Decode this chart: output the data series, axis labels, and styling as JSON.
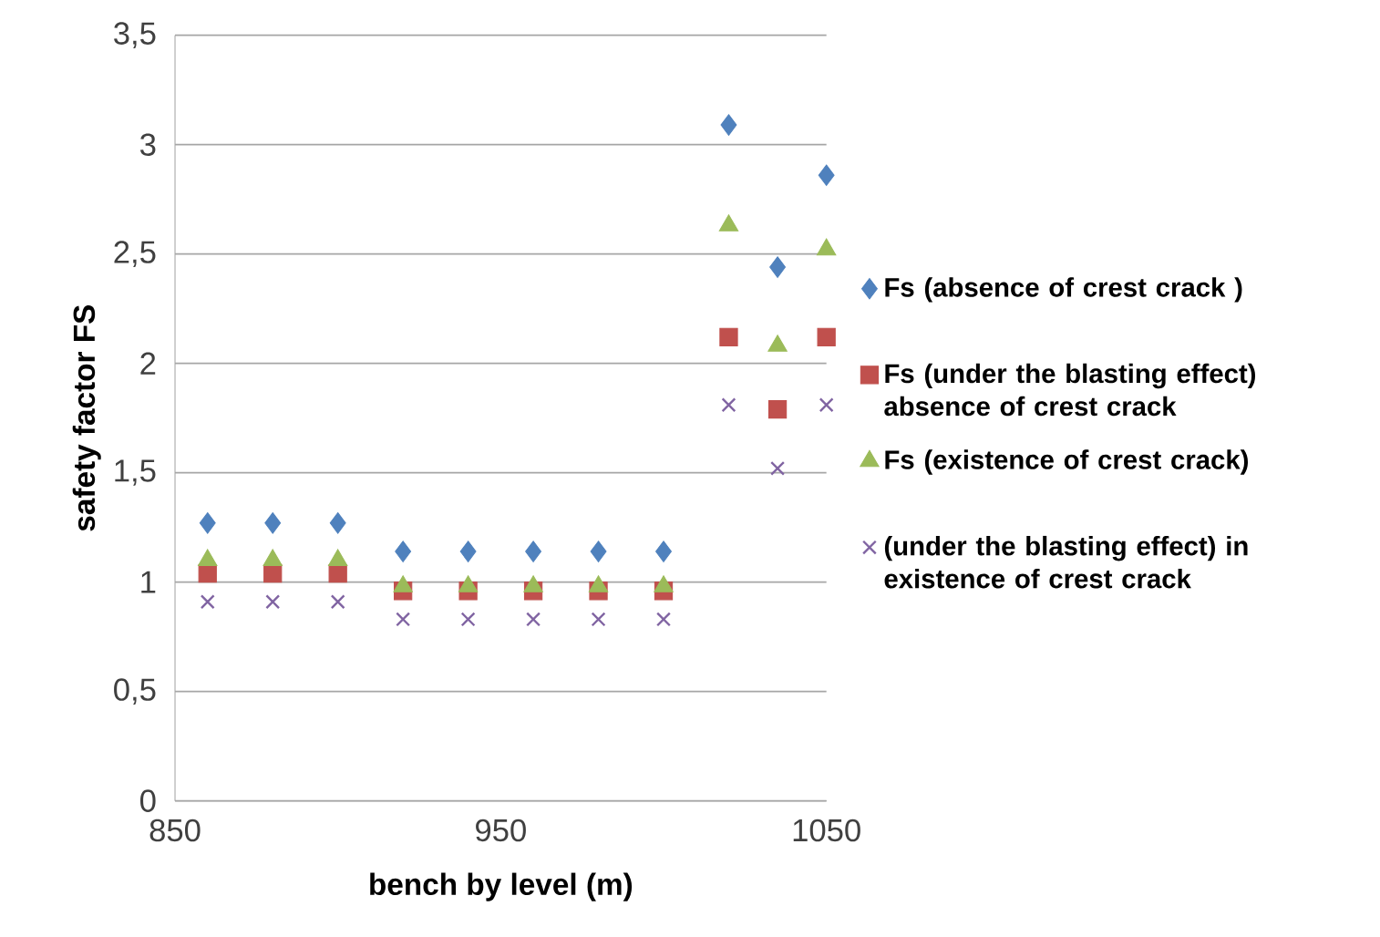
{
  "chart_data": {
    "type": "scatter",
    "xlabel": "bench by level (m)",
    "ylabel": "safety factor  FS",
    "x": [
      860,
      880,
      900,
      920,
      940,
      960,
      980,
      1000,
      1020,
      1035,
      1050
    ],
    "series": [
      {
        "name": "Fs (absence of crest crack )",
        "color": "#4f81bd",
        "marker": "diamond",
        "values": [
          1.27,
          1.27,
          1.27,
          1.14,
          1.14,
          1.14,
          1.14,
          1.14,
          3.09,
          2.44,
          2.86
        ]
      },
      {
        "name": "Fs (under the blasting effect) absence of crest crack",
        "color": "#c0504d",
        "marker": "square",
        "values": [
          1.04,
          1.04,
          1.04,
          0.96,
          0.96,
          0.96,
          0.96,
          0.96,
          2.12,
          1.79,
          2.12
        ]
      },
      {
        "name": "Fs (existence of crest crack)",
        "color": "#9bbb59",
        "marker": "triangle",
        "values": [
          1.1,
          1.1,
          1.1,
          0.98,
          0.98,
          0.98,
          0.98,
          0.98,
          2.63,
          2.08,
          2.52
        ]
      },
      {
        "name": "(under the blasting effect) in existence  of crest crack",
        "color": "#8064a2",
        "marker": "cross",
        "values": [
          0.91,
          0.91,
          0.91,
          0.83,
          0.83,
          0.83,
          0.83,
          0.83,
          1.81,
          1.52,
          1.81
        ]
      }
    ],
    "xlim": [
      850,
      1050
    ],
    "xticks": [
      850,
      950,
      1050
    ],
    "ylim": [
      0,
      3.5
    ],
    "yticks": [
      0,
      {
        "value": 0.5,
        "label": "0,5"
      },
      1,
      {
        "value": 1.5,
        "label": "1,5"
      },
      2,
      {
        "value": 2.5,
        "label": "2,5"
      },
      3,
      {
        "value": 3.5,
        "label": "3,5"
      }
    ],
    "grid": "y",
    "legend": "right"
  }
}
